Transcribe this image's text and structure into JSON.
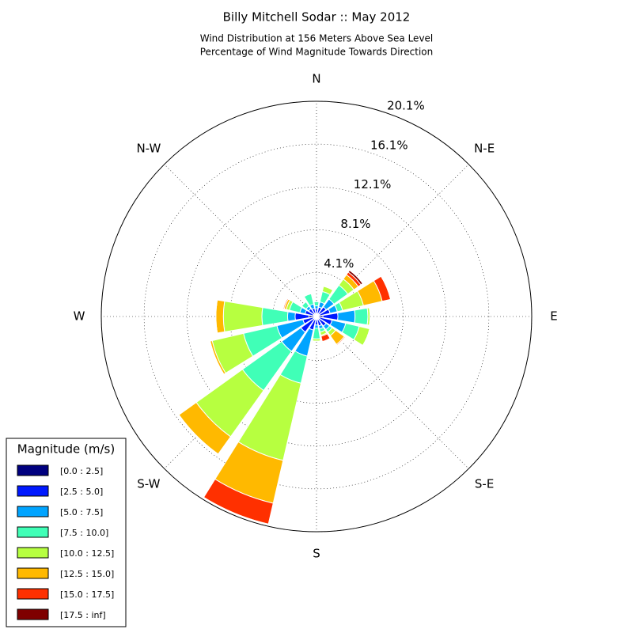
{
  "chart_data": {
    "type": "windrose",
    "title": "Billy Mitchell Sodar :: May 2012",
    "subtitle": [
      "Wind Distribution at 156 Meters Above Sea Level",
      "Percentage of Wind Magnitude Towards Direction"
    ],
    "categories": [
      "N",
      null,
      "N-E",
      null,
      "E",
      null,
      "S-E",
      null,
      "S",
      null,
      "S-W",
      null,
      "W",
      null,
      "N-W",
      null
    ],
    "rlim": [
      0,
      20.1
    ],
    "rticks": [
      {
        "value": 4.1,
        "label": "4.1%"
      },
      {
        "value": 8.1,
        "label": "8.1%"
      },
      {
        "value": 12.1,
        "label": "12.1%"
      },
      {
        "value": 16.1,
        "label": "16.1%"
      },
      {
        "value": 20.1,
        "label": "20.1%"
      }
    ],
    "grid": true,
    "legend_title": "Magnitude (m/s)",
    "legend": "lower left",
    "series": [
      {
        "name": "[0.0 : 2.5]",
        "color": "#00007f",
        "values": [
          0.3,
          0.3,
          0.3,
          0.3,
          0.6,
          0.3,
          0.3,
          0.3,
          0.3,
          0.3,
          0.3,
          0.3,
          0.7,
          0.3,
          0.3,
          0.3
        ]
      },
      {
        "name": "[2.5 : 5.0]",
        "color": "#0019ff",
        "values": [
          0.4,
          0.6,
          0.8,
          1.0,
          1.4,
          1.2,
          0.8,
          0.6,
          0.5,
          1.0,
          1.5,
          1.0,
          1.3,
          0.8,
          0.6,
          0.5
        ]
      },
      {
        "name": "[5.0 : 7.5]",
        "color": "#00a4ff",
        "values": [
          0.3,
          0.5,
          0.9,
          0.7,
          1.6,
          1.3,
          0.4,
          0.3,
          0.3,
          2.5,
          2.2,
          2.5,
          0.7,
          0.5,
          0.3,
          0.4
        ]
      },
      {
        "name": "[7.5 : 10.0]",
        "color": "#40ffb7",
        "values": [
          0.4,
          1.0,
          1.6,
          0.5,
          1.2,
          1.3,
          0.3,
          0.3,
          1.0,
          2.6,
          4.5,
          3.2,
          2.4,
          1.0,
          0.5,
          1.0
        ]
      },
      {
        "name": "[10.0 : 12.5]",
        "color": "#b7ff40",
        "values": [
          0,
          0.5,
          0.7,
          2.0,
          0.2,
          1.0,
          0.4,
          0.3,
          0.2,
          7.4,
          5.3,
          3.0,
          3.6,
          0.3,
          0,
          0
        ]
      },
      {
        "name": "[12.5 : 15.0]",
        "color": "#ffb900",
        "values": [
          0,
          0,
          0.5,
          1.8,
          0,
          0,
          1.0,
          0.1,
          0,
          4.1,
          2.0,
          0.2,
          0.7,
          0.2,
          0,
          0
        ]
      },
      {
        "name": "[15.0 : 17.5]",
        "color": "#ff3000",
        "values": [
          0,
          0,
          0.3,
          0.8,
          0,
          0,
          0.1,
          0.5,
          0,
          2.0,
          0,
          0,
          0,
          0.1,
          0,
          0
        ]
      },
      {
        "name": "[17.5 : inf]",
        "color": "#7f0000",
        "values": [
          0,
          0,
          0.2,
          0,
          0,
          0,
          0,
          0,
          0,
          0,
          0,
          0,
          0,
          0,
          0,
          0
        ]
      }
    ]
  }
}
